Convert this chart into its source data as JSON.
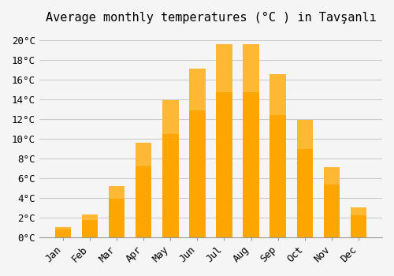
{
  "title": "Average monthly temperatures (°C ) in Tavşanlı",
  "months": [
    "Jan",
    "Feb",
    "Mar",
    "Apr",
    "May",
    "Jun",
    "Jul",
    "Aug",
    "Sep",
    "Oct",
    "Nov",
    "Dec"
  ],
  "values": [
    1.0,
    2.3,
    5.2,
    9.6,
    13.9,
    17.1,
    19.6,
    19.6,
    16.5,
    11.9,
    7.1,
    3.0
  ],
  "bar_color": "#FFA500",
  "bar_color_top": "#FFB833",
  "background_color": "#f5f5f5",
  "grid_color": "#cccccc",
  "ylim": [
    0,
    21
  ],
  "yticks": [
    0,
    2,
    4,
    6,
    8,
    10,
    12,
    14,
    16,
    18,
    20
  ],
  "ytick_labels": [
    "0°C",
    "2°C",
    "4°C",
    "6°C",
    "8°C",
    "10°C",
    "12°C",
    "14°C",
    "16°C",
    "18°C",
    "20°C"
  ],
  "title_fontsize": 11,
  "tick_fontsize": 9,
  "font_family": "monospace"
}
